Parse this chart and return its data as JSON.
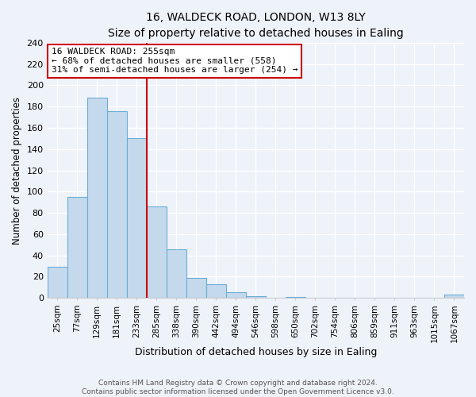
{
  "title": "16, WALDECK ROAD, LONDON, W13 8LY",
  "subtitle": "Size of property relative to detached houses in Ealing",
  "xlabel": "Distribution of detached houses by size in Ealing",
  "ylabel": "Number of detached properties",
  "bar_labels": [
    "25sqm",
    "77sqm",
    "129sqm",
    "181sqm",
    "233sqm",
    "285sqm",
    "338sqm",
    "390sqm",
    "442sqm",
    "494sqm",
    "546sqm",
    "598sqm",
    "650sqm",
    "702sqm",
    "754sqm",
    "806sqm",
    "859sqm",
    "911sqm",
    "963sqm",
    "1015sqm",
    "1067sqm"
  ],
  "bar_values": [
    29,
    95,
    188,
    176,
    150,
    86,
    46,
    19,
    13,
    5,
    2,
    0,
    1,
    0,
    0,
    0,
    0,
    0,
    0,
    0,
    3
  ],
  "bar_color": "#c5d9ed",
  "bar_edge_color": "#6aaed6",
  "vline_color": "#cc0000",
  "annotation_box_text": "16 WALDECK ROAD: 255sqm\n← 68% of detached houses are smaller (558)\n31% of semi-detached houses are larger (254) →",
  "annotation_box_facecolor": "white",
  "annotation_box_edgecolor": "#cc0000",
  "ylim": [
    0,
    240
  ],
  "yticks": [
    0,
    20,
    40,
    60,
    80,
    100,
    120,
    140,
    160,
    180,
    200,
    220,
    240
  ],
  "footer_line1": "Contains HM Land Registry data © Crown copyright and database right 2024.",
  "footer_line2": "Contains public sector information licensed under the Open Government Licence v3.0.",
  "bg_color": "#eef2f9"
}
